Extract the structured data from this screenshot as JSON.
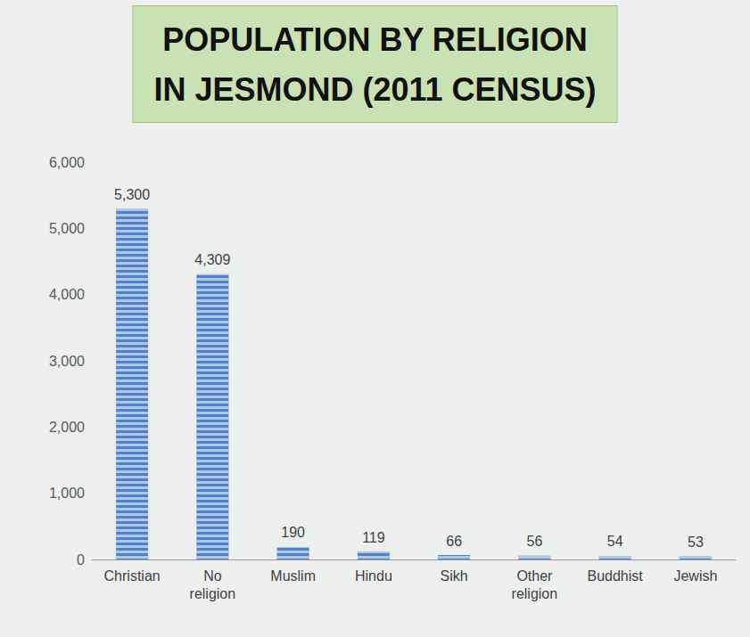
{
  "chart_data": {
    "type": "bar",
    "title": "POPULATION BY RELIGION IN JESMOND (2011 CENSUS)",
    "categories": [
      "Christian",
      "No religion",
      "Muslim",
      "Hindu",
      "Sikh",
      "Other religion",
      "Buddhist",
      "Jewish"
    ],
    "values": [
      5300,
      4309,
      190,
      119,
      66,
      56,
      54,
      53
    ],
    "value_labels": [
      "5,300",
      "4,309",
      "190",
      "119",
      "66",
      "56",
      "54",
      "53"
    ],
    "color": "#4f81c9",
    "ylim": [
      0,
      6000
    ],
    "yticks": [
      0,
      {
        "value": 1000,
        "label": "1,000"
      },
      {
        "value": 2000,
        "label": "2,000"
      },
      {
        "value": 3000,
        "label": "3,000"
      },
      {
        "value": 4000,
        "label": "4,000"
      },
      {
        "value": 5000,
        "label": "5,000"
      },
      {
        "value": 6000,
        "label": "6,000"
      }
    ],
    "grid": false,
    "data_labels": true
  }
}
